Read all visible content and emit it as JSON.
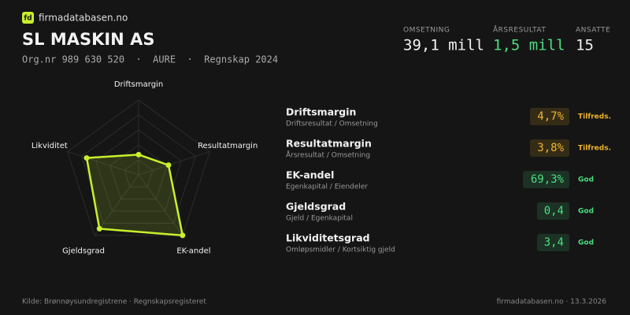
{
  "header": {
    "logo": "fd",
    "site": "firmadatabasen.no",
    "title": "SL MASKIN AS",
    "subtitle": "Org.nr 989 630 520  ·  AURE  ·  Regnskap 2024"
  },
  "stats": [
    {
      "label": "OMSETNING",
      "value": "39,1 mill",
      "color": "#f2f2f2"
    },
    {
      "label": "ÅRSRESULTAT",
      "value": "1,5 mill",
      "color": "#4ade80"
    },
    {
      "label": "ANSATTE",
      "value": "15",
      "color": "#f2f2f2"
    }
  ],
  "metrics": [
    {
      "name": "Driftsmargin",
      "formula": "Driftsresultat / Omsetning",
      "value": "4,7%",
      "status": "Tilfreds.",
      "color": "#f0b429"
    },
    {
      "name": "Resultatmargin",
      "formula": "Årsresultat / Omsetning",
      "value": "3,8%",
      "status": "Tilfreds.",
      "color": "#f0b429"
    },
    {
      "name": "EK-andel",
      "formula": "Egenkapital / Eiendeler",
      "value": "69,3%",
      "status": "God",
      "color": "#4ade80"
    },
    {
      "name": "Gjeldsgrad",
      "formula": "Gjeld / Egenkapital",
      "value": "0,4",
      "status": "God",
      "color": "#4ade80"
    },
    {
      "name": "Likviditetsgrad",
      "formula": "Omløpsmidler / Kortsiktig gjeld",
      "value": "3,4",
      "status": "God",
      "color": "#4ade80"
    }
  ],
  "chart_data": {
    "type": "radar",
    "categories": [
      "Driftsmargin",
      "Resultatmargin",
      "EK-andel",
      "Gjeldsgrad",
      "Likviditet"
    ],
    "values": [
      27,
      42,
      100,
      89,
      73
    ],
    "color": "#c8f02c",
    "ylim": [
      0,
      100
    ],
    "yticks": [
      20,
      40,
      60,
      80,
      100
    ],
    "grid": true
  },
  "footer": {
    "source": "Kilde: Brønnøysundregistrene · Regnskapsregisteret",
    "site_date": "firmadatabasen.no · 13.3.2026"
  }
}
